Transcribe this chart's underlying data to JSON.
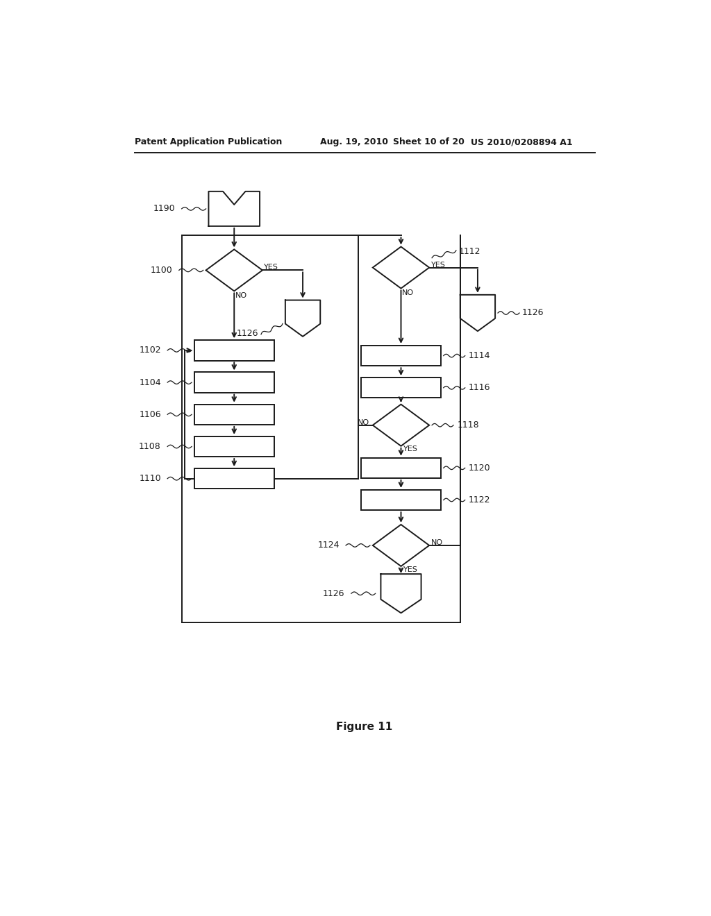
{
  "title_line1": "Patent Application Publication",
  "title_line2": "Aug. 19, 2010",
  "title_line3": "Sheet 10 of 20",
  "title_line4": "US 2010/0208894 A1",
  "figure_label": "Figure 11",
  "background_color": "#ffffff",
  "line_color": "#1a1a1a",
  "lw": 1.4
}
